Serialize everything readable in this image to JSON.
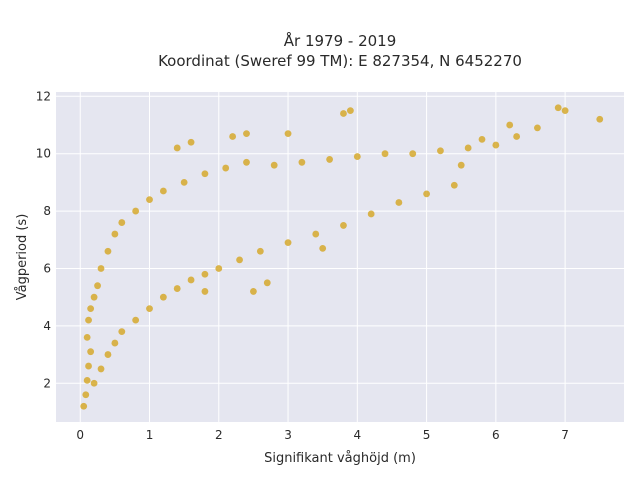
{
  "chart_data": {
    "type": "scatter",
    "title_line1": "År 1979 - 2019",
    "title_line2": "Koordinat (Sweref 99 TM): E 827354, N 6452270",
    "xlabel": "Signifikant våghöjd (m)",
    "ylabel": "Vågperiod (s)",
    "xlim": [
      -0.35,
      7.85
    ],
    "ylim": [
      0.65,
      12.15
    ],
    "x_ticks": [
      0,
      1,
      2,
      3,
      4,
      5,
      6,
      7
    ],
    "y_ticks": [
      2,
      4,
      6,
      8,
      10,
      12
    ],
    "grid": true,
    "colors": {
      "marker": "#d4a520",
      "plot_bg": "#e5e6f0",
      "grid": "#ffffff"
    },
    "series": [
      {
        "points": [
          [
            0.05,
            1.2
          ],
          [
            0.08,
            1.6
          ],
          [
            0.1,
            2.1
          ],
          [
            0.12,
            2.6
          ],
          [
            0.15,
            3.1
          ],
          [
            0.1,
            3.6
          ],
          [
            0.12,
            4.2
          ],
          [
            0.15,
            4.6
          ],
          [
            0.2,
            5.0
          ],
          [
            0.25,
            5.4
          ],
          [
            0.2,
            2.0
          ],
          [
            0.3,
            2.5
          ],
          [
            0.4,
            3.0
          ],
          [
            0.5,
            3.4
          ],
          [
            0.6,
            3.8
          ],
          [
            0.8,
            4.2
          ],
          [
            1.0,
            4.6
          ],
          [
            1.2,
            5.0
          ],
          [
            1.4,
            5.3
          ],
          [
            1.6,
            5.6
          ],
          [
            1.8,
            5.8
          ],
          [
            2.0,
            6.0
          ],
          [
            2.3,
            6.3
          ],
          [
            2.6,
            6.6
          ],
          [
            3.0,
            6.9
          ],
          [
            3.4,
            7.2
          ],
          [
            3.8,
            7.5
          ],
          [
            4.2,
            7.9
          ],
          [
            4.6,
            8.3
          ],
          [
            5.0,
            8.6
          ],
          [
            5.4,
            8.9
          ],
          [
            0.3,
            6.0
          ],
          [
            0.4,
            6.6
          ],
          [
            0.5,
            7.2
          ],
          [
            0.6,
            7.6
          ],
          [
            0.8,
            8.0
          ],
          [
            1.0,
            8.4
          ],
          [
            1.2,
            8.7
          ],
          [
            1.5,
            9.0
          ],
          [
            1.8,
            9.3
          ],
          [
            2.1,
            9.5
          ],
          [
            2.4,
            9.7
          ],
          [
            2.8,
            9.6
          ],
          [
            3.2,
            9.7
          ],
          [
            3.6,
            9.8
          ],
          [
            4.0,
            9.9
          ],
          [
            4.4,
            10.0
          ],
          [
            4.8,
            10.0
          ],
          [
            5.2,
            10.1
          ],
          [
            5.6,
            10.2
          ],
          [
            6.0,
            10.3
          ],
          [
            6.3,
            10.6
          ],
          [
            6.6,
            10.9
          ],
          [
            7.0,
            11.5
          ],
          [
            7.5,
            11.2
          ],
          [
            6.9,
            11.6
          ],
          [
            6.2,
            11.0
          ],
          [
            5.8,
            10.5
          ],
          [
            3.9,
            11.5
          ],
          [
            3.8,
            11.4
          ],
          [
            2.4,
            10.7
          ],
          [
            2.2,
            10.6
          ],
          [
            1.6,
            10.4
          ],
          [
            1.4,
            10.2
          ],
          [
            3.0,
            10.7
          ],
          [
            2.5,
            5.2
          ],
          [
            2.7,
            5.5
          ],
          [
            1.8,
            5.2
          ],
          [
            3.5,
            6.7
          ],
          [
            5.5,
            9.6
          ]
        ]
      }
    ]
  }
}
